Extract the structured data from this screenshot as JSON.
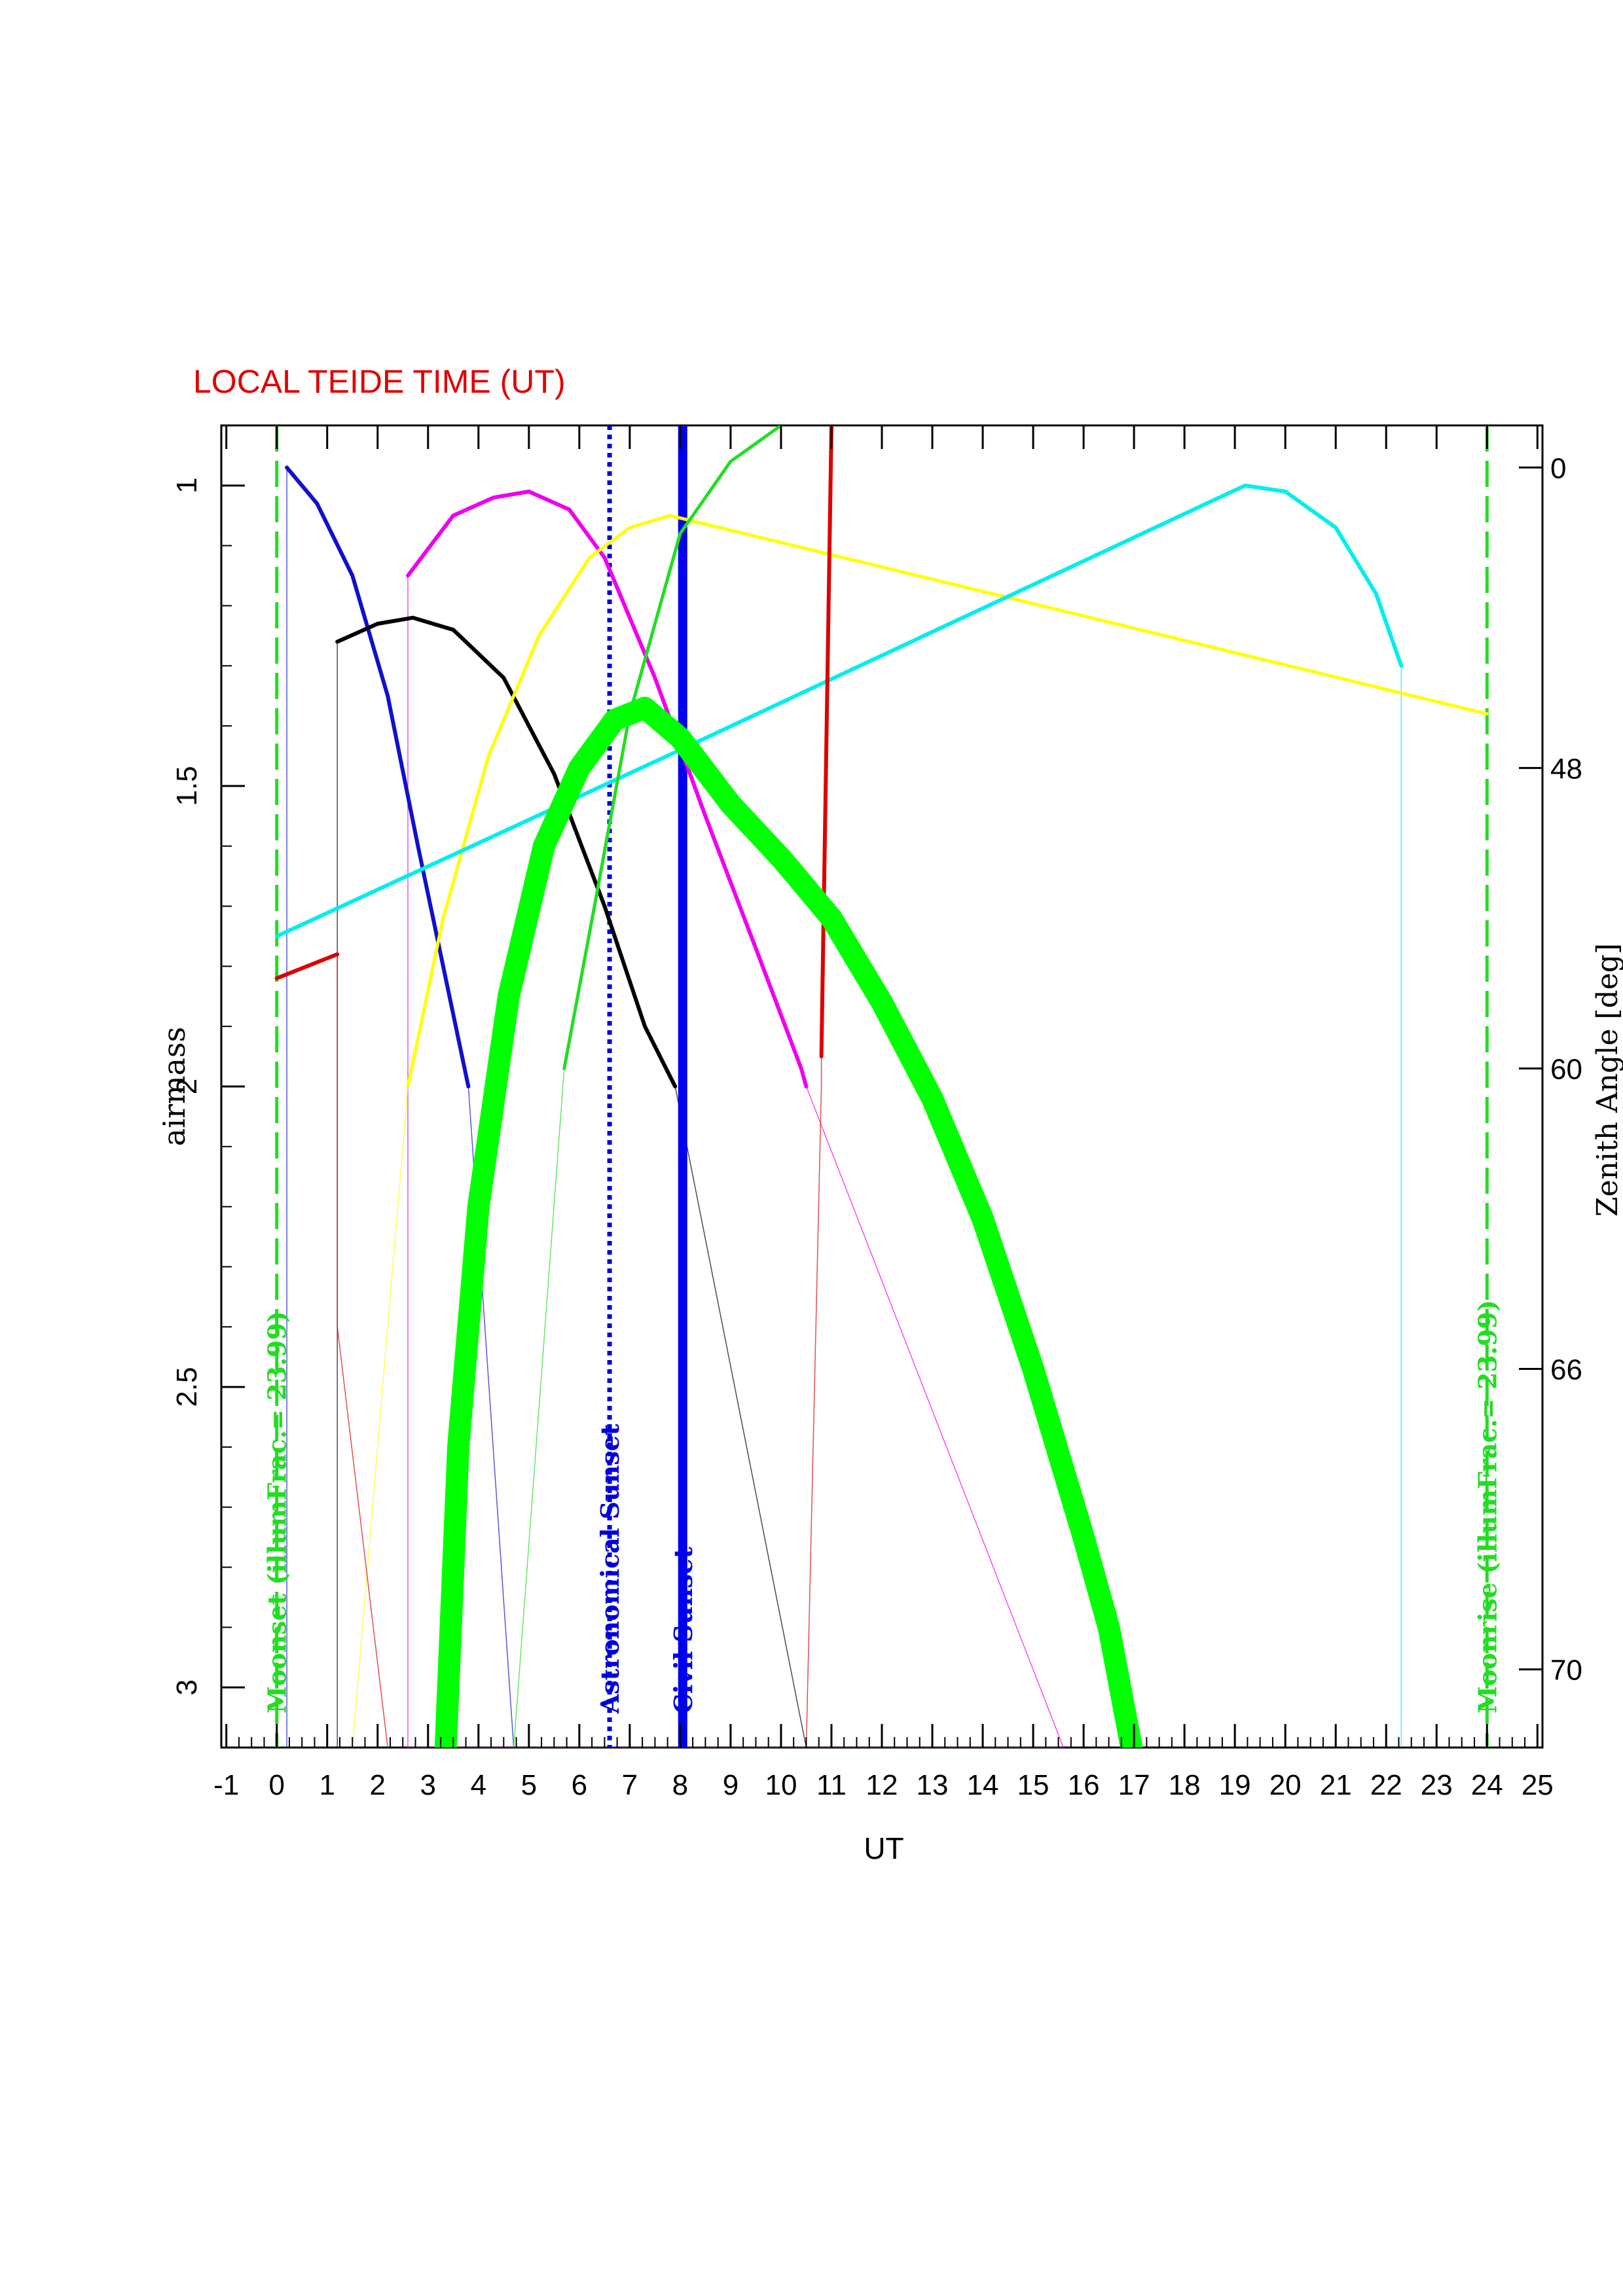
{
  "chart_data": {
    "type": "line",
    "title": "LOCAL TEIDE TIME (UT)",
    "title_color": "#e00000",
    "xlabel": "UT",
    "ylabel": "airmass",
    "y2label": "Zenith Angle [deg]",
    "xlim": [
      -1.1,
      25.1
    ],
    "ylim": [
      3.1,
      0.9
    ],
    "x_ticks": [
      -1,
      0,
      1,
      2,
      3,
      4,
      5,
      6,
      7,
      8,
      9,
      10,
      11,
      12,
      13,
      14,
      15,
      16,
      17,
      18,
      19,
      20,
      21,
      22,
      23,
      24,
      25
    ],
    "y_ticks": [
      1,
      1.5,
      2,
      2.5,
      3
    ],
    "y2_ticks": [
      {
        "label": "0",
        "airmass": 0.97
      },
      {
        "label": "48",
        "airmass": 1.47
      },
      {
        "label": "60",
        "airmass": 1.97
      },
      {
        "label": "66",
        "airmass": 2.47
      },
      {
        "label": "70",
        "airmass": 2.97
      }
    ],
    "markers": [
      {
        "name": "moonset",
        "label": "Moonset (illumFrac.= 23.99)",
        "x": 0,
        "color": "#22dd22",
        "style": "dashed"
      },
      {
        "name": "moonrise",
        "label": "Moonrise (illumFrac.= 23.99)",
        "x": 24,
        "color": "#22dd22",
        "style": "dashed"
      },
      {
        "name": "astronomical-sunset",
        "label": "Astronomical Sunset",
        "x": 6.6,
        "color": "#0000dd",
        "style": "dotted"
      },
      {
        "name": "civil-sunset",
        "label": "Civil Sunset",
        "x": 8.05,
        "color": "#0000ee",
        "style": "solid"
      }
    ],
    "series": [
      {
        "color": "#1010cc",
        "width": 6,
        "points": [
          [
            0.2,
            0.97
          ],
          [
            0.8,
            1.03
          ],
          [
            1.5,
            1.15
          ],
          [
            2.2,
            1.35
          ],
          [
            2.8,
            1.6
          ],
          [
            3.3,
            1.8
          ],
          [
            3.8,
            2.0
          ]
        ],
        "tail": [
          [
            0.2,
            0.97
          ],
          [
            0.2,
            3.1
          ],
          [
            4.7,
            3.1
          ],
          [
            3.8,
            2.0
          ]
        ]
      },
      {
        "color": "#000000",
        "width": 6,
        "points": [
          [
            1.2,
            1.26
          ],
          [
            2,
            1.23
          ],
          [
            2.7,
            1.22
          ],
          [
            3.5,
            1.24
          ],
          [
            4.5,
            1.32
          ],
          [
            5.5,
            1.48
          ],
          [
            6.5,
            1.7
          ],
          [
            7.3,
            1.9
          ],
          [
            7.9,
            2.0
          ]
        ],
        "tail": [
          [
            1.2,
            1.26
          ],
          [
            1.2,
            3.1
          ],
          [
            10.5,
            3.1
          ],
          [
            7.9,
            2.0
          ]
        ]
      },
      {
        "color": "#ee00ee",
        "width": 6,
        "points": [
          [
            2.6,
            1.15
          ],
          [
            3.5,
            1.05
          ],
          [
            4.3,
            1.02
          ],
          [
            5,
            1.01
          ],
          [
            5.8,
            1.04
          ],
          [
            6.5,
            1.12
          ],
          [
            7.5,
            1.32
          ],
          [
            8.5,
            1.55
          ],
          [
            9.5,
            1.77
          ],
          [
            10.4,
            1.97
          ],
          [
            10.5,
            2.0
          ]
        ],
        "tail": [
          [
            2.6,
            1.15
          ],
          [
            2.6,
            3.1
          ],
          [
            15.6,
            3.1
          ],
          [
            10.5,
            2.0
          ]
        ]
      },
      {
        "color": "#ffff00",
        "width": 5,
        "points": [
          [
            2.6,
            2.0
          ],
          [
            3.3,
            1.72
          ],
          [
            4.2,
            1.45
          ],
          [
            5.2,
            1.25
          ],
          [
            6.2,
            1.12
          ],
          [
            7,
            1.07
          ],
          [
            7.8,
            1.05
          ],
          [
            24,
            1.38
          ]
        ],
        "tail": [
          [
            2.6,
            2.0
          ],
          [
            1.5,
            3.1
          ]
        ]
      },
      {
        "color": "#00eeee",
        "width": 6,
        "points": [
          [
            0,
            1.75
          ],
          [
            8,
            1.44
          ],
          [
            19.2,
            1.0
          ],
          [
            20,
            1.01
          ],
          [
            21,
            1.07
          ],
          [
            21.8,
            1.18
          ],
          [
            22.3,
            1.3
          ]
        ],
        "tail": [
          [
            22.3,
            1.3
          ],
          [
            22.3,
            3.1
          ]
        ]
      },
      {
        "color": "#dd0000",
        "width": 6,
        "points": [
          [
            0,
            1.82
          ],
          [
            1.2,
            1.78
          ]
        ],
        "tail": [
          [
            1.2,
            1.78
          ],
          [
            1.2,
            2.4
          ],
          [
            2.2,
            3.1
          ]
        ]
      },
      {
        "color": "#dd0000",
        "width": 6,
        "points": [
          [
            10.8,
            1.95
          ],
          [
            11.0,
            0.9
          ]
        ],
        "tail": [
          [
            10.8,
            1.95
          ],
          [
            10.8,
            2.0
          ],
          [
            10.5,
            3.1
          ]
        ]
      },
      {
        "color": "#22dd22",
        "width": 5,
        "points": [
          [
            5.7,
            1.97
          ],
          [
            6.3,
            1.7
          ],
          [
            7,
            1.38
          ],
          [
            8,
            1.08
          ],
          [
            9,
            0.96
          ],
          [
            10,
            0.9
          ]
        ],
        "tail": [
          [
            5.7,
            1.97
          ],
          [
            4.7,
            3.1
          ]
        ]
      },
      {
        "color": "#00ff00",
        "width": 34,
        "points": [
          [
            3.35,
            3.1
          ],
          [
            3.6,
            2.6
          ],
          [
            4,
            2.2
          ],
          [
            4.6,
            1.85
          ],
          [
            5.3,
            1.6
          ],
          [
            6,
            1.47
          ],
          [
            6.7,
            1.39
          ],
          [
            7.3,
            1.37
          ],
          [
            8,
            1.42
          ],
          [
            9,
            1.53
          ],
          [
            10,
            1.62
          ],
          [
            11,
            1.72
          ],
          [
            12,
            1.86
          ],
          [
            13,
            2.02
          ],
          [
            14,
            2.22
          ],
          [
            15,
            2.47
          ],
          [
            16,
            2.75
          ],
          [
            16.5,
            2.9
          ],
          [
            16.95,
            3.1
          ]
        ]
      }
    ]
  }
}
